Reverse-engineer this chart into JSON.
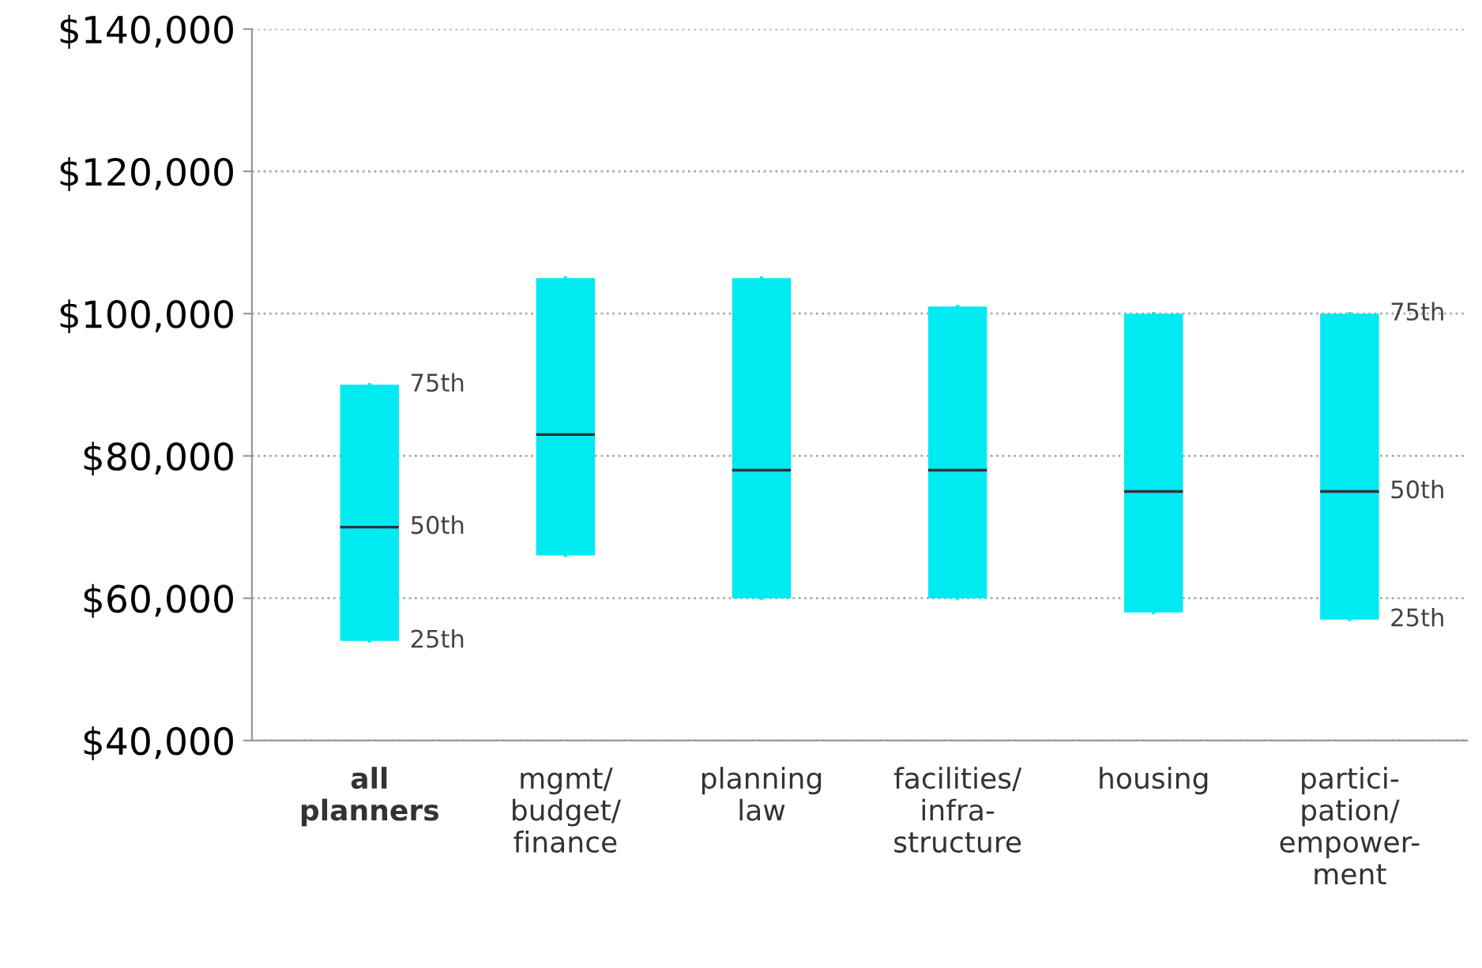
{
  "chart_data": {
    "type": "box",
    "categories": [
      "all\nplanners",
      "mgmt/\nbudget/\nfinance",
      "planning\nlaw",
      "facilities/\ninfra-\nstructure",
      "housing",
      "partici-\npation/\nempower-\nment"
    ],
    "boxes": [
      {
        "q1": 54000,
        "median": 70000,
        "q3": 90000
      },
      {
        "q1": 66000,
        "median": 83000,
        "q3": 105000
      },
      {
        "q1": 60000,
        "median": 78000,
        "q3": 105000
      },
      {
        "q1": 60000,
        "median": 78000,
        "q3": 101000
      },
      {
        "q1": 58000,
        "median": 75000,
        "q3": 100000
      },
      {
        "q1": 57000,
        "median": 75000,
        "q3": 100000
      }
    ],
    "color": "#00eaf2",
    "ylim": [
      40000,
      140000
    ],
    "yticks": [
      {
        "value": 40000,
        "label": "$40,000"
      },
      {
        "value": 60000,
        "label": "$60,000"
      },
      {
        "value": 80000,
        "label": "$80,000"
      },
      {
        "value": 100000,
        "label": "$100,000"
      },
      {
        "value": 120000,
        "label": "$120,000"
      },
      {
        "value": 140000,
        "label": "$140,000"
      }
    ],
    "grid": "y",
    "annotations": [
      {
        "text": "75th",
        "x": "all\nplanners",
        "y": 90000
      },
      {
        "text": "50th",
        "x": "all\nplanners",
        "y": 70000
      },
      {
        "text": "25th",
        "x": "all\nplanners",
        "y": 54000
      },
      {
        "text": "75th",
        "x": "partici-\npation/\nempower-\nment",
        "y": 100000
      },
      {
        "text": "50th",
        "x": "partici-\npation/\nempower-\nment",
        "y": 75000
      },
      {
        "text": "25th",
        "x": "partici-\npation/\nempower-\nment",
        "y": 57000
      }
    ]
  }
}
